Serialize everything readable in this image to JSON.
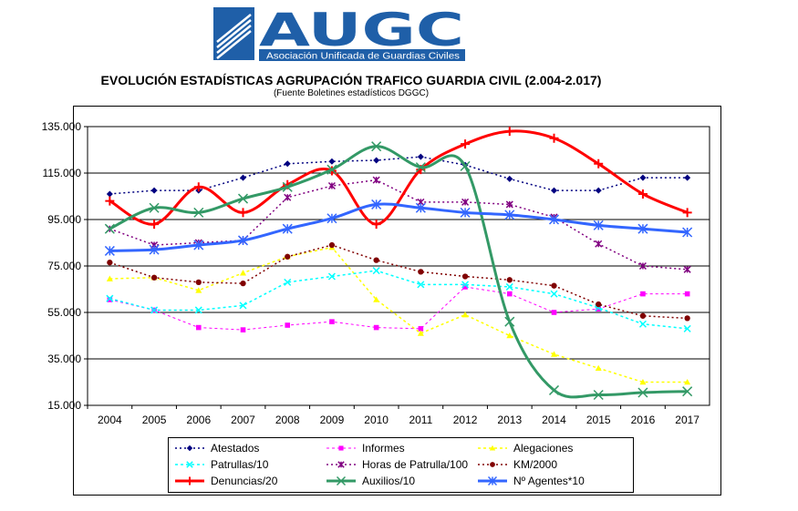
{
  "logo": {
    "name": "AUGC",
    "tagline": "Asociación Unificada de Guardias Civiles"
  },
  "colors": {
    "logo_blue": "#1f5fa8",
    "grid": "#000000"
  },
  "chart_data": {
    "type": "line",
    "title": "EVOLUCIÓN ESTADÍSTICAS AGRUPACIÓN TRAFICO GUARDIA CIVIL (2.004-2.017)",
    "subtitle": "(Fuente Boletines estadísticos DGGC)",
    "categories": [
      "2004",
      "2005",
      "2006",
      "2007",
      "2008",
      "2009",
      "2010",
      "2011",
      "2012",
      "2013",
      "2014",
      "2015",
      "2016",
      "2017"
    ],
    "y_ticks": [
      "135.000",
      "115.000",
      "95.000",
      "75.000",
      "55.000",
      "35.000",
      "15.000"
    ],
    "ylim": [
      15000,
      135000
    ],
    "grid": true,
    "legend_position": "bottom",
    "series": [
      {
        "name": "Atestados",
        "color": "#000080",
        "style": "dotted",
        "marker": "diamond",
        "width": 1.5,
        "values": [
          106000,
          107500,
          107500,
          113000,
          119000,
          120000,
          120500,
          122000,
          118500,
          112500,
          107500,
          107500,
          113000,
          113000
        ]
      },
      {
        "name": "Informes",
        "color": "#ff00ff",
        "style": "dashed",
        "marker": "square",
        "width": 1,
        "values": [
          60500,
          56000,
          48500,
          47500,
          49500,
          51000,
          48500,
          48000,
          66000,
          63000,
          55000,
          56500,
          63000,
          63000
        ]
      },
      {
        "name": "Alegaciones",
        "color": "#ffff00",
        "style": "dashed",
        "marker": "triangle",
        "width": 1.5,
        "values": [
          69500,
          70000,
          64500,
          72000,
          79000,
          83000,
          60500,
          46000,
          54000,
          45000,
          37000,
          31000,
          25000,
          25000
        ]
      },
      {
        "name": "Patrullas/10",
        "color": "#00ffff",
        "style": "dashed",
        "marker": "x",
        "width": 1.5,
        "values": [
          61000,
          56000,
          56000,
          58000,
          68000,
          70500,
          73000,
          67000,
          67000,
          66000,
          63000,
          57000,
          50000,
          48000
        ]
      },
      {
        "name": "Horas de Patrulla/100",
        "color": "#800080",
        "style": "dotted",
        "marker": "star",
        "width": 1.5,
        "values": [
          91000,
          84000,
          85000,
          86000,
          104500,
          109500,
          112000,
          102500,
          102500,
          101500,
          96000,
          84500,
          75000,
          73500
        ]
      },
      {
        "name": "KM/2000",
        "color": "#800000",
        "style": "dotted",
        "marker": "circle",
        "width": 1.5,
        "values": [
          76500,
          70000,
          68000,
          67500,
          79000,
          84000,
          77500,
          72500,
          70500,
          69000,
          66500,
          58500,
          53500,
          52500
        ]
      },
      {
        "name": "Denuncias/20",
        "color": "#ff0000",
        "style": "solid",
        "marker": "plus",
        "width": 3,
        "values": [
          103000,
          93000,
          109000,
          98000,
          110000,
          116000,
          93000,
          116500,
          127500,
          133000,
          130000,
          119000,
          106000,
          98000
        ]
      },
      {
        "name": "Auxilios/10",
        "color": "#339966",
        "style": "solid",
        "marker": "x",
        "width": 3,
        "values": [
          91000,
          100000,
          98000,
          104000,
          109000,
          116500,
          126500,
          117500,
          118000,
          51000,
          21500,
          19500,
          20500,
          21000
        ]
      },
      {
        "name": "Nº Agentes*10",
        "color": "#3366ff",
        "style": "solid",
        "marker": "star",
        "width": 3,
        "values": [
          81500,
          82000,
          84000,
          86000,
          91000,
          95500,
          101500,
          100000,
          98000,
          97000,
          95000,
          92500,
          91000,
          89500
        ]
      }
    ]
  }
}
